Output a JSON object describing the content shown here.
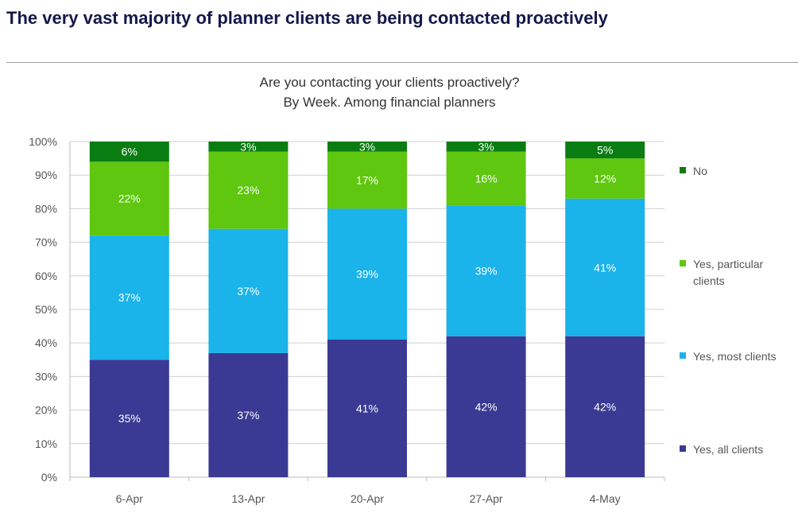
{
  "page_title": "The very vast majority of planner clients are being contacted proactively",
  "chart_data": {
    "type": "bar",
    "stacked": true,
    "title": "Are you contacting your clients proactively?",
    "subtitle": "By Week. Among financial planners",
    "xlabel": "",
    "ylabel": "",
    "ylim": [
      0,
      100
    ],
    "yticks": [
      "0%",
      "10%",
      "20%",
      "30%",
      "40%",
      "50%",
      "60%",
      "70%",
      "80%",
      "90%",
      "100%"
    ],
    "grid": true,
    "legend_position": "right",
    "categories": [
      "6-Apr",
      "13-Apr",
      "20-Apr",
      "27-Apr",
      "4-May"
    ],
    "series": [
      {
        "name": "Yes, all clients",
        "color": "#3a3a94",
        "values": [
          35,
          37,
          41,
          42,
          42
        ]
      },
      {
        "name": "Yes, most clients",
        "color": "#1ab3ea",
        "values": [
          37,
          37,
          39,
          39,
          41
        ]
      },
      {
        "name": "Yes, particular clients",
        "color": "#5fc70f",
        "values": [
          22,
          23,
          17,
          16,
          12
        ]
      },
      {
        "name": "No",
        "color": "#0a7d12",
        "values": [
          6,
          3,
          3,
          3,
          5
        ]
      }
    ],
    "legend_order": [
      "No",
      "Yes, particular clients",
      "Yes, most clients",
      "Yes, all clients"
    ],
    "legend_lines": {
      "No": [
        "No"
      ],
      "Yes, particular clients": [
        "Yes, particular",
        "clients"
      ],
      "Yes, most clients": [
        "Yes, most clients"
      ],
      "Yes, all clients": [
        "Yes, all clients"
      ]
    }
  }
}
